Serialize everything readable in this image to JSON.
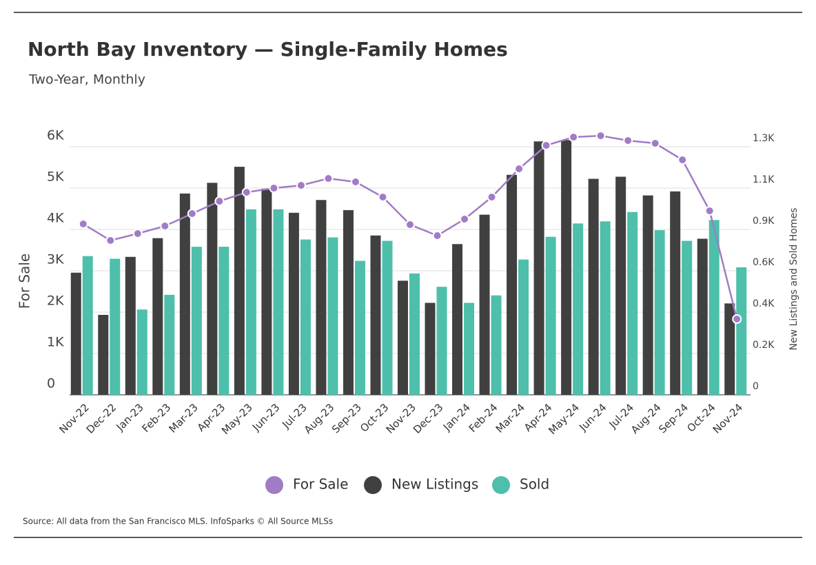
{
  "chart_data": {
    "type": "bar",
    "title": "North Bay Inventory — Single-Family Homes",
    "subtitle": "Two-Year, Monthly",
    "y_label": "For Sale",
    "y2_label": "New Listings and Sold Homes",
    "source": "Source:  All data from the San Francisco MLS. InfoSparks © All Source MLSs",
    "categories": [
      "Nov-22",
      "Dec-22",
      "Jan-23",
      "Feb-23",
      "Mar-23",
      "Apr-23",
      "May-23",
      "Jun-23",
      "Jul-23",
      "Aug-23",
      "Sep-23",
      "Oct-23",
      "Nov-23",
      "Dec-23",
      "Jan-24",
      "Feb-24",
      "Mar-24",
      "Apr-24",
      "May-24",
      "Jun-24",
      "Jul-24",
      "Aug-24",
      "Sep-24",
      "Oct-24",
      "Nov-24"
    ],
    "series": [
      {
        "name": "For Sale",
        "type": "line",
        "color": "#a07cc5",
        "values": [
          4133,
          3733,
          3900,
          4083,
          4383,
          4683,
          4900,
          5000,
          5067,
          5233,
          5150,
          4783,
          4117,
          3850,
          4250,
          4783,
          5467,
          6033,
          6233,
          6267,
          6150,
          6083,
          5683,
          4450,
          1833
        ]
      },
      {
        "name": "New Listings",
        "type": "bar",
        "axis": "y2",
        "color": "#404040",
        "values": [
          640,
          419,
          723,
          821,
          1055,
          1111,
          1195,
          1080,
          954,
          1021,
          968,
          835,
          598,
          482,
          790,
          944,
          1153,
          1328,
          1335,
          1132,
          1143,
          1045,
          1066,
          818,
          479
        ]
      },
      {
        "name": "Sold",
        "type": "bar",
        "axis": "y2",
        "color": "#4dbfaa",
        "values": [
          727,
          713,
          447,
          524,
          776,
          776,
          972,
          972,
          814,
          825,
          702,
          807,
          636,
          566,
          482,
          521,
          709,
          828,
          898,
          909,
          958,
          863,
          807,
          916,
          668
        ]
      }
    ],
    "ylim": [
      0,
      6000
    ],
    "yticks": [
      0,
      {
        "value": 1000,
        "label": "1K"
      },
      {
        "value": 2000,
        "label": "2K"
      },
      {
        "value": 3000,
        "label": "3K"
      },
      {
        "value": 4000,
        "label": "4K"
      },
      {
        "value": 5000,
        "label": "5K"
      },
      {
        "value": 6000,
        "label": "6K"
      }
    ],
    "y2lim": [
      0,
      1300
    ],
    "y2ticks": [
      0,
      {
        "value": 216.7,
        "label": "0.2K"
      },
      {
        "value": 433.3,
        "label": "0.4K"
      },
      {
        "value": 650,
        "label": "0.6K"
      },
      {
        "value": 866.7,
        "label": "0.9K"
      },
      {
        "value": 1083.3,
        "label": "1.1K"
      },
      {
        "value": 1300,
        "label": "1.3K"
      }
    ],
    "grid": true,
    "legend": "bottom"
  }
}
